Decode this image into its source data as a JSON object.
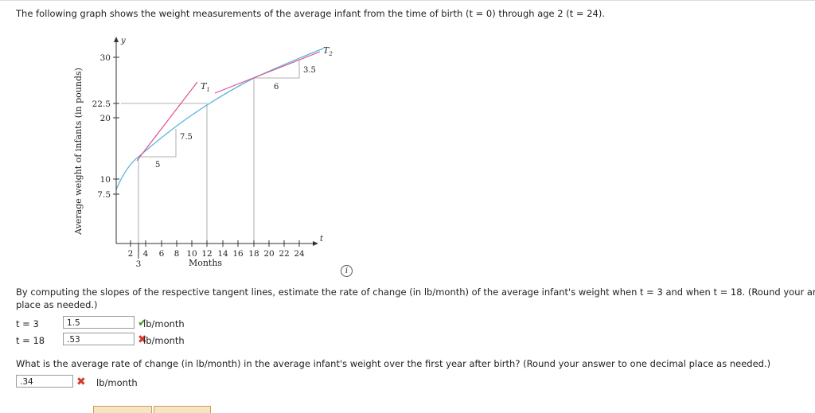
{
  "question1": "The following graph shows the weight measurements of the average infant from the time of birth (t = 0) through age 2 (t = 24).",
  "graph": {
    "y_axis_title": "Average weight of infants (in pounds)",
    "y_var": "y",
    "x_var": "t",
    "x_axis_title": "Months",
    "y_ticks": [
      "30",
      "22.5",
      "20",
      "10",
      "7.5"
    ],
    "x_ticks": [
      "2",
      "4",
      "6",
      "8",
      "10",
      "12",
      "14",
      "16",
      "18",
      "20",
      "22",
      "24"
    ],
    "x_extra_tick": "3",
    "triangle_labels": {
      "run1": "5",
      "rise1": "7.5",
      "run2": "6",
      "rise2": "3.5"
    },
    "tangent_labels": {
      "t1_letter": "T",
      "t1_sub": "1",
      "t2_letter": "T",
      "t2_sub": "2"
    },
    "colors": {
      "curve": "#5ab4e0",
      "tangent": "#e0508a",
      "axis": "#333333",
      "guide": "#888888"
    }
  },
  "info_icon": "i",
  "question2_line1": "By computing the slopes of the respective tangent lines, estimate the rate of change (in lb/month) of the average infant's weight when t = 3 and when t = 18. (Round your ans",
  "question2_line2": "place as needed.)",
  "answers": [
    {
      "label": "t = 3",
      "value": "1.5",
      "status": "correct",
      "unit": "lb/month"
    },
    {
      "label": "t = 18",
      "value": ".53",
      "status": "incorrect",
      "unit": "lb/month"
    }
  ],
  "question3": "What is the average rate of change (in lb/month) in the average infant's weight over the first year after birth? (Round your answer to one decimal place as needed.)",
  "answer3": {
    "value": ".34",
    "status": "incorrect",
    "unit": "lb/month"
  }
}
